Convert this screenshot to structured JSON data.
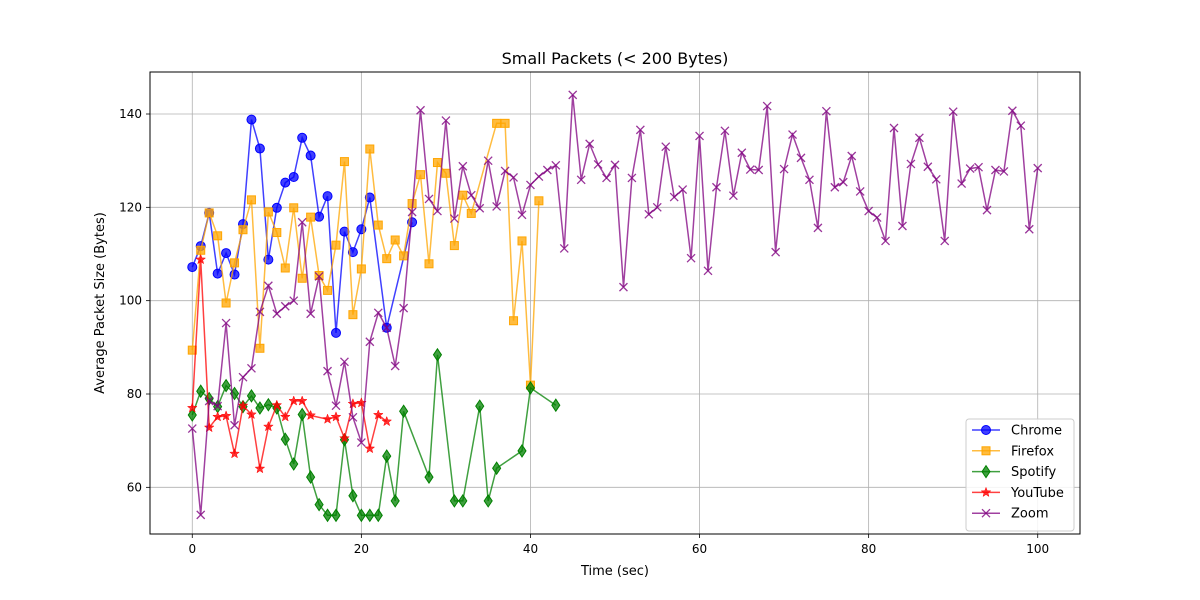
{
  "chart_data": {
    "type": "line",
    "title": "Small Packets (< 200 Bytes)",
    "xlabel": "Time (sec)",
    "ylabel": "Average Packet Size (Bytes)",
    "xlim": [
      -5,
      105
    ],
    "ylim": [
      50,
      149
    ],
    "xticks": [
      0,
      20,
      40,
      60,
      80,
      100
    ],
    "yticks": [
      60,
      80,
      100,
      120,
      140
    ],
    "grid": true,
    "legend_position": "lower-right",
    "series": [
      {
        "name": "Chrome",
        "color": "#0000ff",
        "marker": "circle",
        "x": [
          0,
          1,
          2,
          3,
          4,
          5,
          6,
          7,
          8,
          9,
          10,
          11,
          12,
          13,
          14,
          15,
          16,
          17,
          18,
          19,
          20,
          21,
          23,
          26
        ],
        "y": [
          107.2,
          111.7,
          118.8,
          105.8,
          110.2,
          105.6,
          116.4,
          138.8,
          132.6,
          108.8,
          119.9,
          125.3,
          126.5,
          134.9,
          131.1,
          118.0,
          122.4,
          93.1,
          114.8,
          110.4,
          115.3,
          122.1,
          94.2,
          116.8
        ]
      },
      {
        "name": "Firefox",
        "color": "#ffa500",
        "marker": "square",
        "x": [
          0,
          1,
          2,
          3,
          4,
          5,
          6,
          7,
          8,
          9,
          10,
          11,
          12,
          13,
          14,
          15,
          16,
          17,
          18,
          19,
          20,
          21,
          22,
          23,
          24,
          25,
          26,
          27,
          28,
          29,
          30,
          31,
          32,
          33,
          36,
          37,
          38,
          39,
          40,
          41
        ],
        "y": [
          89.4,
          110.8,
          118.8,
          113.9,
          99.5,
          108.1,
          115.2,
          121.6,
          89.8,
          119.0,
          114.6,
          107.0,
          119.9,
          104.8,
          117.9,
          105.4,
          102.2,
          111.9,
          129.8,
          97.0,
          106.8,
          132.5,
          116.2,
          109.0,
          113.0,
          109.6,
          120.8,
          127.0,
          107.9,
          129.6,
          127.3,
          111.8,
          122.6,
          118.7,
          138.0,
          138.0,
          95.7,
          112.8,
          81.9,
          121.4
        ]
      },
      {
        "name": "Spotify",
        "color": "#008000",
        "marker": "diamond",
        "x": [
          0,
          1,
          2,
          3,
          4,
          5,
          6,
          7,
          8,
          9,
          10,
          11,
          12,
          13,
          14,
          15,
          16,
          17,
          18,
          19,
          20,
          21,
          22,
          23,
          24,
          25,
          28,
          29,
          31,
          32,
          34,
          35,
          36,
          39,
          40,
          43
        ],
        "y": [
          75.5,
          80.6,
          79.0,
          77.3,
          81.8,
          80.1,
          77.3,
          79.6,
          77.0,
          77.7,
          77.0,
          70.3,
          65.0,
          75.6,
          62.2,
          56.3,
          54.0,
          54.0,
          70.2,
          58.2,
          54.0,
          54.0,
          54.0,
          66.7,
          57.1,
          76.3,
          62.2,
          88.4,
          57.1,
          57.1,
          77.4,
          57.1,
          64.1,
          67.8,
          81.3,
          77.6
        ]
      },
      {
        "name": "YouTube",
        "color": "#ff0000",
        "marker": "star",
        "x": [
          0,
          1,
          2,
          3,
          4,
          5,
          6,
          7,
          8,
          9,
          10,
          11,
          12,
          13,
          14,
          16,
          17,
          18,
          19,
          20,
          21,
          22,
          23
        ],
        "y": [
          77.0,
          108.8,
          72.8,
          75.1,
          75.3,
          67.2,
          77.5,
          75.6,
          64.0,
          73.0,
          77.6,
          75.1,
          78.5,
          78.5,
          75.4,
          74.6,
          75.1,
          70.5,
          77.9,
          78.1,
          68.3,
          75.5,
          74.1
        ]
      },
      {
        "name": "Zoom",
        "color": "#800080",
        "marker": "x",
        "x": [
          0,
          1,
          2,
          3,
          4,
          5,
          6,
          7,
          8,
          9,
          10,
          11,
          12,
          13,
          14,
          15,
          16,
          17,
          18,
          19,
          20,
          21,
          22,
          23,
          24,
          25,
          26,
          27,
          28,
          29,
          30,
          31,
          32,
          33,
          34,
          35,
          36,
          37,
          38,
          39,
          40,
          41,
          42,
          43,
          44,
          45,
          46,
          47,
          48,
          49,
          50,
          51,
          52,
          53,
          54,
          55,
          56,
          57,
          58,
          59,
          60,
          61,
          62,
          63,
          64,
          65,
          66,
          67,
          68,
          69,
          70,
          71,
          72,
          73,
          74,
          75,
          76,
          77,
          78,
          79,
          80,
          81,
          82,
          83,
          84,
          85,
          86,
          87,
          88,
          89,
          90,
          91,
          92,
          93,
          94,
          95,
          96,
          97,
          98,
          99,
          100
        ],
        "y": [
          72.6,
          54.1,
          78.5,
          77.4,
          95.2,
          73.3,
          83.6,
          85.5,
          97.6,
          103.2,
          97.2,
          98.8,
          100.0,
          116.8,
          97.2,
          105.2,
          84.9,
          77.5,
          86.9,
          75.0,
          69.6,
          91.2,
          97.4,
          94.2,
          86.0,
          98.4,
          119.0,
          140.8,
          121.8,
          119.2,
          138.6,
          117.6,
          128.8,
          122.6,
          119.8,
          130.0,
          120.2,
          127.8,
          126.4,
          118.4,
          124.8,
          126.6,
          128.0,
          129.0,
          111.2,
          144.1,
          125.9,
          133.6,
          129.2,
          126.3,
          129.1,
          102.9,
          126.3,
          136.6,
          118.5,
          120.0,
          133.0,
          122.2,
          123.8,
          109.1,
          135.3,
          106.4,
          124.3,
          136.4,
          122.5,
          131.7,
          128.1,
          128.0,
          141.7,
          110.4,
          128.2,
          135.6,
          130.6,
          125.9,
          115.6,
          140.6,
          124.3,
          125.4,
          131.0,
          123.4,
          119.2,
          117.8,
          112.8,
          137.0,
          116.0,
          129.3,
          134.9,
          128.7,
          126.0,
          112.8,
          140.5,
          125.1,
          128.3,
          128.6,
          119.4,
          128.0,
          127.7,
          140.7,
          137.5,
          115.3,
          128.4
        ]
      }
    ]
  }
}
